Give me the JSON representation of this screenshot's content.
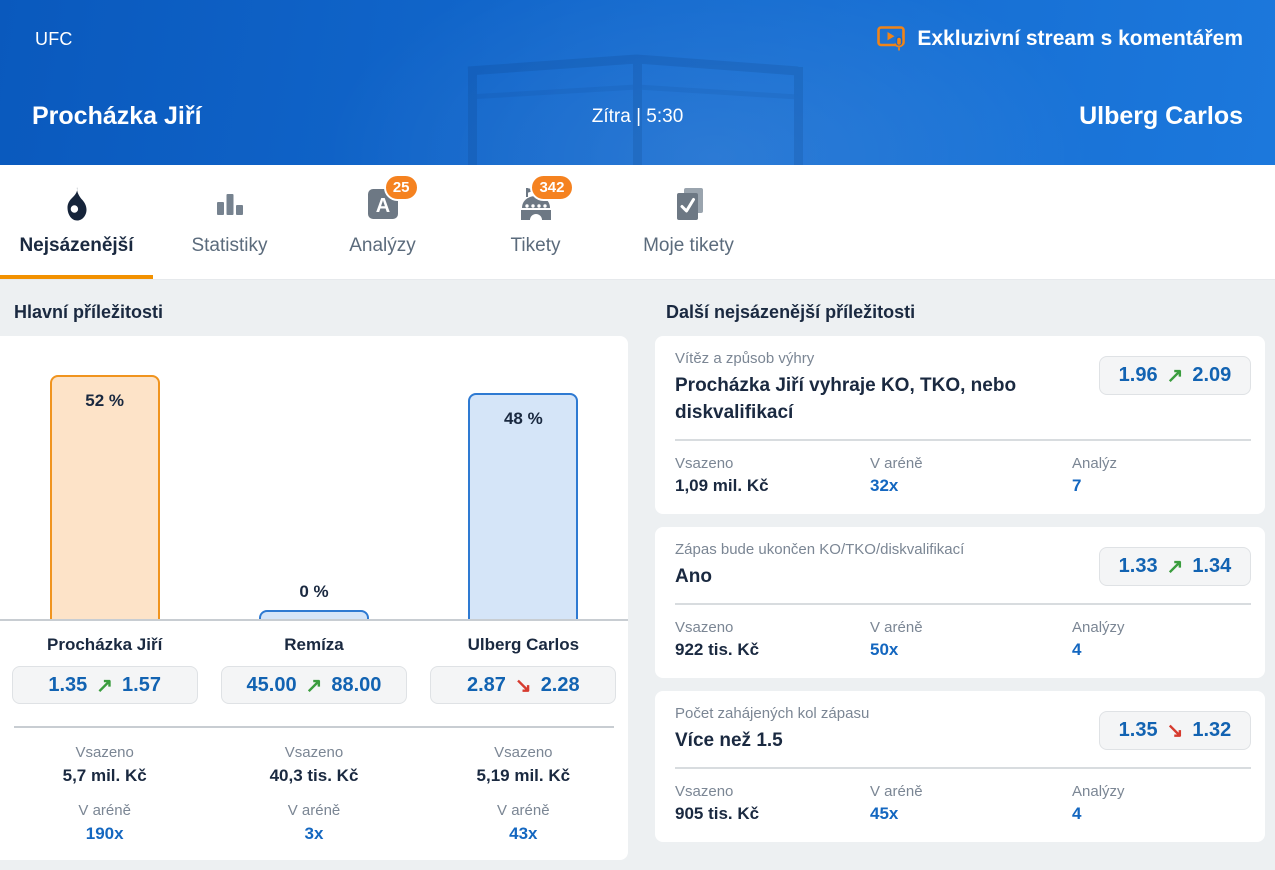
{
  "colors": {
    "header_gradient_start": "#0a59bd",
    "header_gradient_end": "#1c78dc",
    "accent_orange": "#f29100",
    "badge_orange": "#f58220",
    "stream_orange": "#f08418",
    "odds_blue": "#1263b2",
    "stat_blue": "#1467c0",
    "dark_navy": "#1a2940",
    "label_gray": "#7b8694",
    "inactive_tab": "#5b6b7c",
    "page_bg": "#edf0f2",
    "card_bg": "#ffffff",
    "trend_up_green": "#3a9d3e",
    "trend_down_red": "#d63b2f",
    "divider_strong": "#c8cdd2",
    "divider_light": "#d8dcdf",
    "odds_btn_bg": "#f4f5f6",
    "odds_btn_border": "#dfe2e5"
  },
  "header": {
    "league": "UFC",
    "stream_label": "Exkluzivní stream s komentářem",
    "stream_icon": "stream-monitor-icon",
    "home_team": "Procházka Jiří",
    "start_time": "Zítra | 5:30",
    "away_team": "Ulberg Carlos"
  },
  "tabs": [
    {
      "label": "Nejsázenější",
      "icon": "flame-icon",
      "badge": null,
      "active": true
    },
    {
      "label": "Statistiky",
      "icon": "bar-chart-icon",
      "badge": null,
      "active": false
    },
    {
      "label": "Analýzy",
      "icon": "analyses-icon",
      "badge": "25",
      "active": false
    },
    {
      "label": "Tikety",
      "icon": "arena-icon",
      "badge": "342",
      "active": false
    },
    {
      "label": "Moje tikety",
      "icon": "my-tickets-icon",
      "badge": null,
      "active": false
    }
  ],
  "left_panel": {
    "title": "Hlavní příležitosti",
    "staked_label": "Vsazeno",
    "arena_label": "V aréně",
    "columns": [
      {
        "name": "Procházka Jiří",
        "percent": "52 %",
        "odds_open": "1.35",
        "odds_current": "1.57",
        "trend": "up",
        "staked": "5,7 mil. Kč",
        "arena": "190x"
      },
      {
        "name": "Remíza",
        "percent": "0 %",
        "odds_open": "45.00",
        "odds_current": "88.00",
        "trend": "up",
        "staked": "40,3 tis. Kč",
        "arena": "3x"
      },
      {
        "name": "Ulberg Carlos",
        "percent": "48 %",
        "odds_open": "2.87",
        "odds_current": "2.28",
        "trend": "down",
        "staked": "5,19 mil. Kč",
        "arena": "43x"
      }
    ]
  },
  "right_panel": {
    "title": "Další nejsázenější příležitosti",
    "cards": [
      {
        "market": "Vítěz a způsob výhry",
        "selection": "Procházka Jiří vyhraje KO, TKO, nebo diskvalifikací",
        "odds_open": "1.96",
        "odds_current": "2.09",
        "trend": "up",
        "stats": [
          {
            "label": "Vsazeno",
            "value": "1,09 mil. Kč"
          },
          {
            "label": "V aréně",
            "value": "32x"
          },
          {
            "label": "Analýz",
            "value": "7"
          }
        ]
      },
      {
        "market": "Zápas bude ukončen KO/TKO/diskvalifikací",
        "selection": "Ano",
        "odds_open": "1.33",
        "odds_current": "1.34",
        "trend": "up",
        "stats": [
          {
            "label": "Vsazeno",
            "value": "922 tis. Kč"
          },
          {
            "label": "V aréně",
            "value": "50x"
          },
          {
            "label": "Analýzy",
            "value": "4"
          }
        ]
      },
      {
        "market": "Počet zahájených kol zápasu",
        "selection": "Více než 1.5",
        "odds_open": "1.35",
        "odds_current": "1.32",
        "trend": "down",
        "stats": [
          {
            "label": "Vsazeno",
            "value": "905 tis. Kč"
          },
          {
            "label": "V aréně",
            "value": "45x"
          },
          {
            "label": "Analýzy",
            "value": "4"
          }
        ]
      }
    ]
  },
  "chart_data": {
    "type": "bar",
    "title": "Hlavní příležitosti",
    "categories": [
      "Procházka Jiří",
      "Remíza",
      "Ulberg Carlos"
    ],
    "values": [
      52,
      0,
      48
    ],
    "value_labels": [
      "52 %",
      "0 %",
      "48 %"
    ],
    "unit": "%",
    "ylim": [
      0,
      60
    ],
    "grid": false,
    "legend": "none",
    "bar_colors": [
      {
        "fill": "#fde3c8",
        "border": "#f0941f"
      },
      {
        "fill": "#d5e5f8",
        "border": "#2e7ad2"
      },
      {
        "fill": "#d5e5f8",
        "border": "#2e7ad2"
      }
    ]
  }
}
